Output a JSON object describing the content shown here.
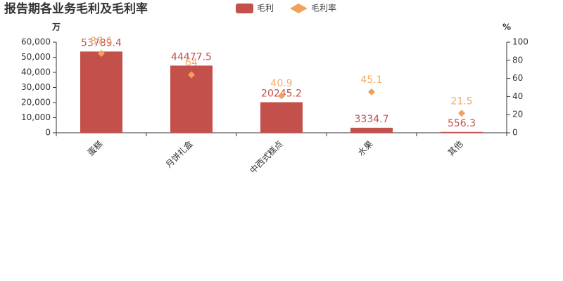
{
  "chart_data": {
    "type": "bar",
    "title": "报告期各业务毛利及毛利率",
    "y_unit": "万",
    "y2_unit": "%",
    "categories": [
      "蛋糕",
      "月饼礼盒",
      "中西式糕点",
      "水果",
      "其他"
    ],
    "series": [
      {
        "name": "毛利",
        "type": "bar",
        "color": "#c4504c",
        "values": [
          53789.4,
          44477.5,
          20245.2,
          3334.7,
          556.3
        ]
      },
      {
        "name": "毛利率",
        "type": "scatter",
        "axis": "y2",
        "color": "#f2a05a",
        "label_color": "#f5ad66",
        "values": [
          87.6,
          64,
          40.9,
          45.1,
          21.5
        ]
      }
    ],
    "ylim": [
      0,
      60000
    ],
    "yticks": [
      0,
      {
        "value": 10000,
        "label": "10,000"
      },
      {
        "value": 20000,
        "label": "20,000"
      },
      {
        "value": 30000,
        "label": "30,000"
      },
      {
        "value": 40000,
        "label": "40,000"
      },
      {
        "value": 50000,
        "label": "50,000"
      },
      {
        "value": 60000,
        "label": "60,000"
      }
    ],
    "y2lim": [
      0,
      100
    ],
    "y2ticks": [
      0,
      20,
      40,
      60,
      80,
      100
    ],
    "grid": false
  }
}
